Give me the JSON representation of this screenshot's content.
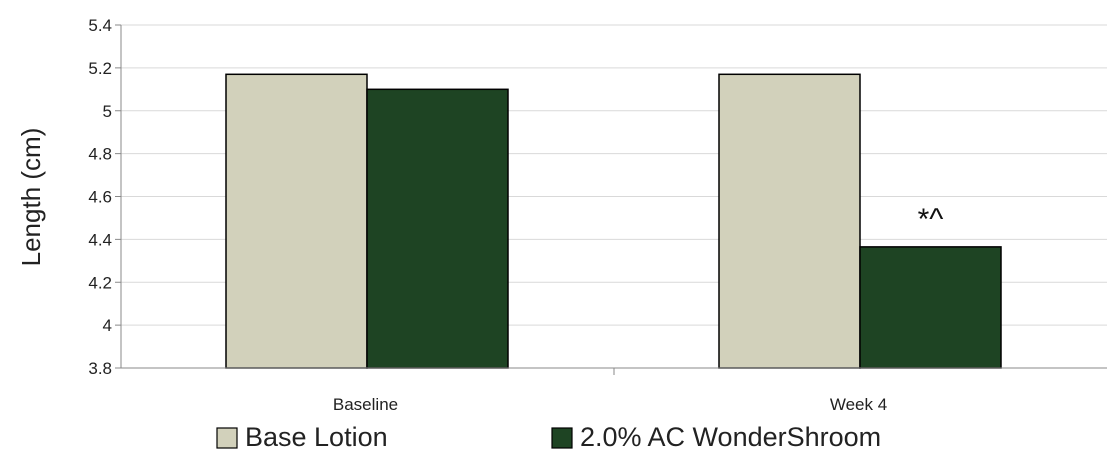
{
  "chart_data": {
    "type": "bar",
    "categories": [
      "Baseline",
      "Week 4"
    ],
    "series": [
      {
        "name": "Base Lotion",
        "values": [
          5.17,
          5.17
        ],
        "color": "#d2d1bb"
      },
      {
        "name": "2.0% AC WonderShroom",
        "values": [
          5.1,
          4.365
        ],
        "color": "#1e4423"
      }
    ],
    "ylabel": "Length (cm)",
    "ylim": [
      3.8,
      5.4
    ],
    "yticks": [
      "3.8",
      "4",
      "4.2",
      "4.4",
      "4.6",
      "4.8",
      "5",
      "5.2",
      "5.4"
    ],
    "grid": true,
    "legend_position": "bottom",
    "annotations": [
      {
        "text": "*^",
        "category": "Week 4",
        "series": "2.0% AC WonderShroom"
      }
    ]
  }
}
